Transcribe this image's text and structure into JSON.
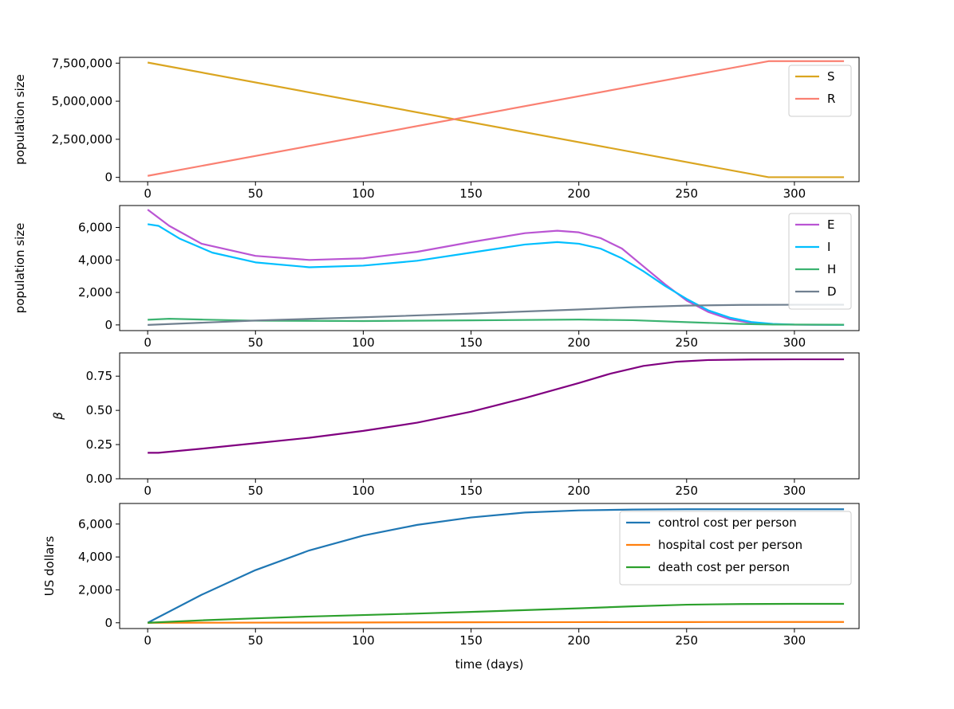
{
  "chart_data": [
    {
      "type": "line",
      "ylabel": "population size",
      "xlim": [
        -13,
        330
      ],
      "ylim": [
        -280000,
        7880000
      ],
      "xticks": [
        0,
        50,
        100,
        150,
        200,
        250,
        300
      ],
      "yticks": [
        0,
        2500000,
        5000000,
        7500000
      ],
      "legend": "top-right",
      "series": [
        {
          "name": "S",
          "color": "#daa520",
          "x": [
            0,
            288,
            323
          ],
          "y": [
            7540000,
            10000,
            10000
          ]
        },
        {
          "name": "R",
          "color": "#fa8072",
          "x": [
            0,
            288,
            323
          ],
          "y": [
            100000,
            7630000,
            7630000
          ]
        }
      ]
    },
    {
      "type": "line",
      "ylabel": "population size",
      "xlim": [
        -13,
        330
      ],
      "ylim": [
        -350,
        7350
      ],
      "xticks": [
        0,
        50,
        100,
        150,
        200,
        250,
        300
      ],
      "yticks": [
        0,
        2000,
        4000,
        6000
      ],
      "legend": "top-right",
      "series": [
        {
          "name": "E",
          "color": "#ba55d3",
          "x": [
            0,
            10,
            25,
            50,
            75,
            100,
            125,
            150,
            175,
            190,
            200,
            210,
            220,
            230,
            240,
            250,
            260,
            270,
            280,
            290,
            300,
            323
          ],
          "y": [
            7100,
            6100,
            5000,
            4250,
            4000,
            4100,
            4500,
            5100,
            5650,
            5800,
            5700,
            5350,
            4700,
            3600,
            2500,
            1500,
            800,
            350,
            120,
            40,
            15,
            5
          ]
        },
        {
          "name": "I",
          "color": "#00bfff",
          "x": [
            0,
            5,
            15,
            30,
            50,
            75,
            100,
            125,
            150,
            175,
            190,
            200,
            210,
            220,
            230,
            240,
            250,
            260,
            270,
            280,
            290,
            300,
            323
          ],
          "y": [
            6200,
            6100,
            5300,
            4450,
            3850,
            3550,
            3650,
            3950,
            4450,
            4950,
            5100,
            5000,
            4700,
            4100,
            3300,
            2400,
            1600,
            900,
            450,
            180,
            60,
            20,
            5
          ]
        },
        {
          "name": "H",
          "color": "#3cb371",
          "x": [
            0,
            10,
            25,
            50,
            100,
            150,
            200,
            225,
            250,
            275,
            290,
            323
          ],
          "y": [
            320,
            380,
            330,
            260,
            240,
            280,
            330,
            290,
            170,
            60,
            25,
            10
          ]
        },
        {
          "name": "D",
          "color": "#708090",
          "x": [
            0,
            50,
            100,
            150,
            200,
            225,
            250,
            275,
            300,
            323
          ],
          "y": [
            0,
            270,
            470,
            700,
            950,
            1090,
            1190,
            1230,
            1240,
            1245
          ]
        }
      ]
    },
    {
      "type": "line",
      "ylabel": "β",
      "xlim": [
        -13,
        330
      ],
      "ylim": [
        0,
        0.92
      ],
      "xticks": [
        0,
        50,
        100,
        150,
        200,
        250,
        300
      ],
      "yticks": [
        0.0,
        0.25,
        0.5,
        0.75
      ],
      "legend": "none",
      "series": [
        {
          "name": "",
          "color": "#800080",
          "x": [
            0,
            5,
            25,
            50,
            75,
            100,
            125,
            150,
            175,
            200,
            215,
            230,
            245,
            260,
            280,
            300,
            323
          ],
          "y": [
            0.19,
            0.19,
            0.22,
            0.26,
            0.3,
            0.35,
            0.41,
            0.49,
            0.59,
            0.7,
            0.77,
            0.825,
            0.855,
            0.868,
            0.872,
            0.873,
            0.873
          ]
        }
      ]
    },
    {
      "type": "line",
      "ylabel": "US dollars",
      "xlabel": "time (days)",
      "xlim": [
        -13,
        330
      ],
      "ylim": [
        -350,
        7250
      ],
      "xticks": [
        0,
        50,
        100,
        150,
        200,
        250,
        300
      ],
      "yticks": [
        0,
        2000,
        4000,
        6000
      ],
      "legend": "top-right",
      "series": [
        {
          "name": "control cost per person",
          "color": "#1f77b4",
          "x": [
            0,
            25,
            50,
            75,
            100,
            125,
            150,
            175,
            200,
            225,
            250,
            275,
            300,
            323
          ],
          "y": [
            0,
            1700,
            3200,
            4400,
            5300,
            5950,
            6400,
            6700,
            6830,
            6880,
            6900,
            6900,
            6900,
            6900
          ]
        },
        {
          "name": "hospital cost per person",
          "color": "#ff7f0e",
          "x": [
            0,
            50,
            100,
            150,
            200,
            250,
            300,
            323
          ],
          "y": [
            0,
            10,
            20,
            30,
            40,
            45,
            48,
            50
          ]
        },
        {
          "name": "death cost per person",
          "color": "#2ca02c",
          "x": [
            0,
            25,
            50,
            75,
            100,
            125,
            150,
            175,
            200,
            225,
            250,
            275,
            300,
            323
          ],
          "y": [
            0,
            150,
            270,
            380,
            470,
            560,
            660,
            770,
            880,
            1000,
            1100,
            1140,
            1150,
            1150
          ]
        }
      ]
    }
  ]
}
